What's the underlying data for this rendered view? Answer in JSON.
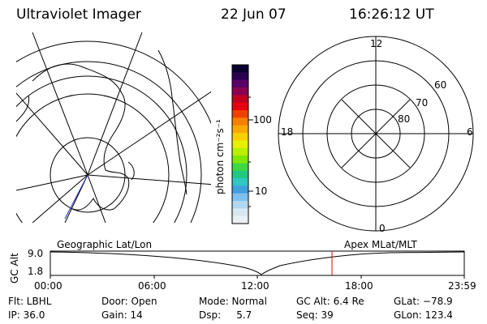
{
  "header": {
    "instrument": "Ultraviolet Imager",
    "date": "22 Jun 07",
    "time": "16:26:12 UT"
  },
  "colorbar": {
    "unit_label": "photon cm⁻²s⁻¹",
    "tick_100": "100",
    "tick_10": "10",
    "colors_top_to_bottom": [
      "#0a0030",
      "#2a0050",
      "#5a0068",
      "#8a0050",
      "#c00020",
      "#e60010",
      "#f04000",
      "#f58000",
      "#f8a800",
      "#f8d000",
      "#e8f000",
      "#b8f000",
      "#80e800",
      "#40d840",
      "#20c880",
      "#30c8c0",
      "#40a0e0",
      "#80c0f0",
      "#b0d8f0",
      "#d8e8f0",
      "#e8f0f4"
    ]
  },
  "polar_labels": {
    "top": "12",
    "left": "18",
    "right": "6",
    "bottom": "0",
    "ring_60": "60",
    "ring_70": "70",
    "ring_80": "80"
  },
  "timeline": {
    "left_title": "Geographic Lat/Lon",
    "right_title": "Apex MLat/MLT",
    "axis_label": "GC Alt",
    "y_top": "9.0",
    "y_bottom": "1.8",
    "x_ticks": [
      "00:00",
      "06:00",
      "12:00",
      "18:00",
      "23:59"
    ],
    "marker_color": "#e00000"
  },
  "info": {
    "filter": "Flt: LBHL",
    "ip": "IP: 36.0",
    "door": "Door: Open",
    "gain": "Gain: 14",
    "mode": "Mode: Normal",
    "dsp": "Dsp:     5.7",
    "gc_alt": "GC Alt: 6.4 Re",
    "seq": "Seq: 39",
    "glat": "GLat: −78.9",
    "glon": "GLon: 123.4"
  }
}
